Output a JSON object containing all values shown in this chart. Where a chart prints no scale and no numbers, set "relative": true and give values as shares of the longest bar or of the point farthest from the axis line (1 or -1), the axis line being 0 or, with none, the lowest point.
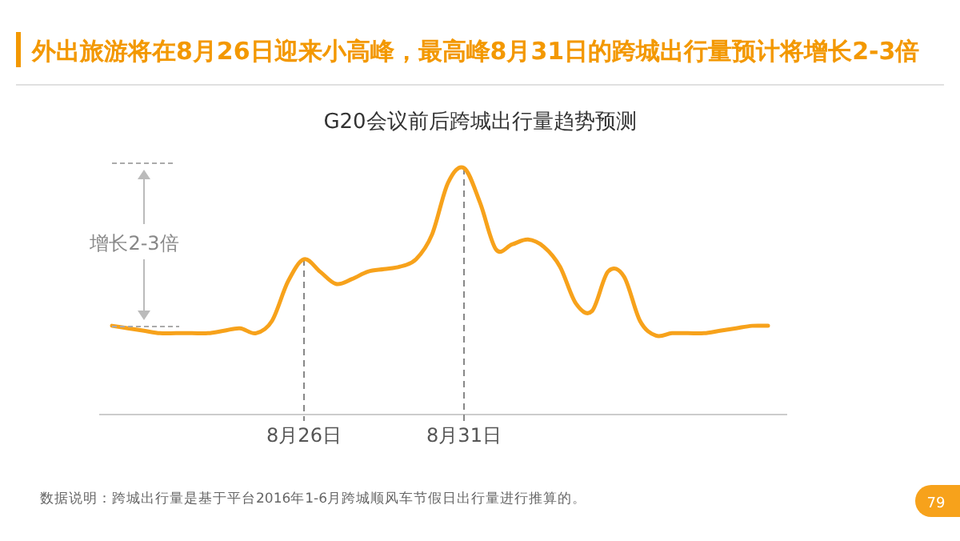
{
  "chart_data": {
    "type": "line",
    "title": "外出旅游将在8月26日迎来小高峰，最高峰8月31日的跨城出行量预计将增长2-3倍",
    "subtitle": "G20会议前后跨城出行量趋势预测",
    "relative": true,
    "marker": "none",
    "line_style": "solid",
    "categories": [
      null,
      null,
      null,
      null,
      null,
      null,
      null,
      null,
      null,
      null,
      null,
      null,
      "8月26日",
      null,
      null,
      null,
      null,
      null,
      null,
      null,
      null,
      null,
      "8月31日",
      null,
      null,
      null,
      null,
      null,
      null,
      null,
      null,
      null,
      null,
      null,
      null,
      null,
      null,
      null,
      null,
      null,
      null,
      null
    ],
    "series": [
      {
        "color": "#f7a21b",
        "values": [
          0.36,
          0.35,
          0.34,
          0.33,
          0.33,
          0.33,
          0.33,
          0.34,
          0.35,
          0.33,
          0.38,
          0.54,
          0.63,
          0.58,
          0.53,
          0.55,
          0.58,
          0.59,
          0.6,
          0.63,
          0.73,
          0.94,
          1,
          0.86,
          0.67,
          0.69,
          0.71,
          0.68,
          0.6,
          0.45,
          0.42,
          0.58,
          0.56,
          0.38,
          0.32,
          0.33,
          0.33,
          0.33,
          0.34,
          0.35,
          0.36,
          0.36
        ]
      }
    ],
    "ref_lines": [
      {
        "axis": "x",
        "value": "8月26日",
        "line_style": "dashed",
        "color": "#888888"
      },
      {
        "axis": "x",
        "value": "8月31日",
        "line_style": "dashed",
        "color": "#888888"
      }
    ],
    "annotations": [
      "增长2-3倍",
      "数据说明：跨城出行量是基于平台2016年1-6月跨城顺风车节假日出行量进行推算的。",
      "79"
    ]
  }
}
